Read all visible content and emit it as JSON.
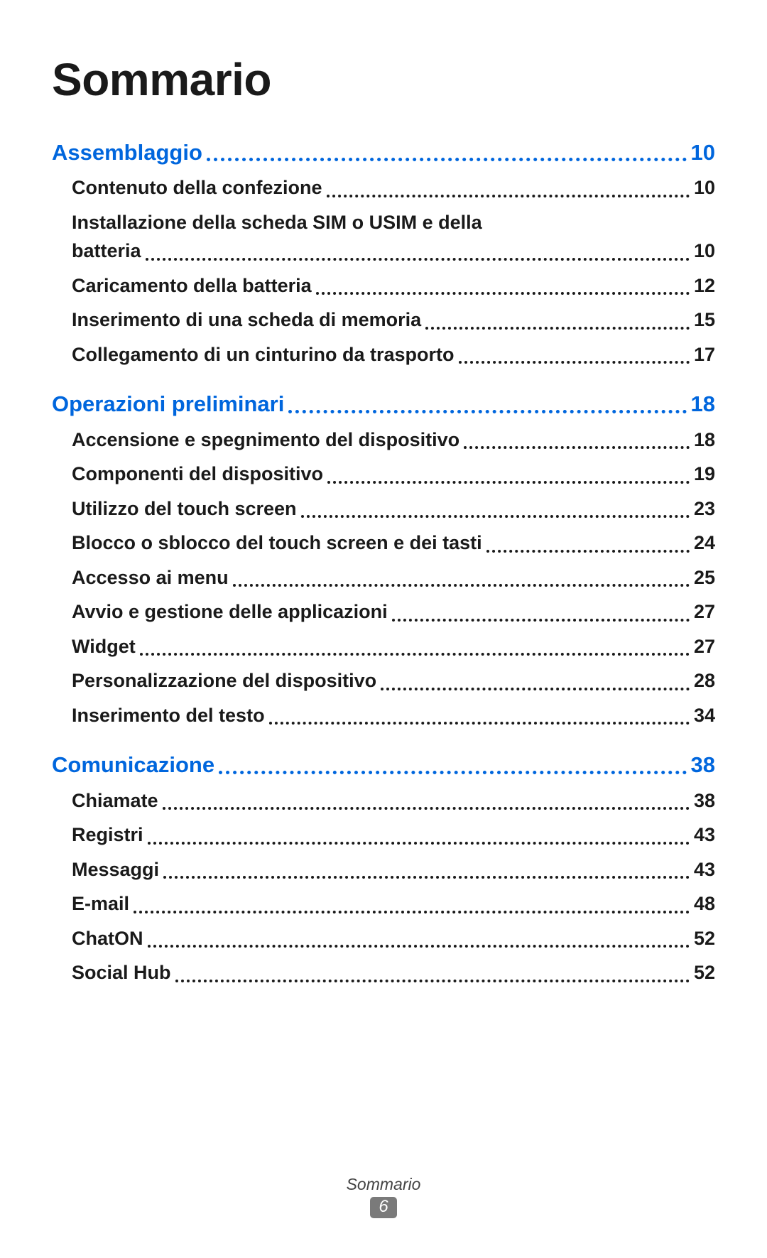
{
  "title": "Sommario",
  "footer_label": "Sommario",
  "footer_page": "6",
  "colors": {
    "section": "#0066dd",
    "text": "#1a1a1a",
    "badge_bg": "#7a7a7a"
  },
  "sections": [
    {
      "label": "Assemblaggio",
      "page": "10",
      "entries": [
        {
          "label": "Contenuto della confezione",
          "page": "10"
        },
        {
          "label_line1": "Installazione della scheda SIM o USIM e della",
          "label_line2": "batteria",
          "page": "10",
          "multiline": true
        },
        {
          "label": "Caricamento della batteria",
          "page": "12"
        },
        {
          "label": "Inserimento di una scheda di memoria",
          "page": "15"
        },
        {
          "label": "Collegamento di un cinturino da trasporto",
          "page": "17"
        }
      ]
    },
    {
      "label": "Operazioni preliminari",
      "page": "18",
      "entries": [
        {
          "label": "Accensione e spegnimento del dispositivo",
          "page": "18"
        },
        {
          "label": "Componenti del dispositivo",
          "page": "19"
        },
        {
          "label": "Utilizzo del touch screen",
          "page": "23"
        },
        {
          "label": "Blocco o sblocco del touch screen e dei tasti",
          "page": "24"
        },
        {
          "label": "Accesso ai menu",
          "page": "25"
        },
        {
          "label": "Avvio e gestione delle applicazioni",
          "page": "27"
        },
        {
          "label": "Widget",
          "page": "27"
        },
        {
          "label": "Personalizzazione del dispositivo",
          "page": "28"
        },
        {
          "label": "Inserimento del testo",
          "page": "34"
        }
      ]
    },
    {
      "label": "Comunicazione",
      "page": "38",
      "entries": [
        {
          "label": "Chiamate",
          "page": "38"
        },
        {
          "label": "Registri",
          "page": "43"
        },
        {
          "label": "Messaggi",
          "page": "43"
        },
        {
          "label": "E-mail",
          "page": "48"
        },
        {
          "label": "ChatON",
          "page": "52"
        },
        {
          "label": "Social Hub",
          "page": "52"
        }
      ]
    }
  ]
}
